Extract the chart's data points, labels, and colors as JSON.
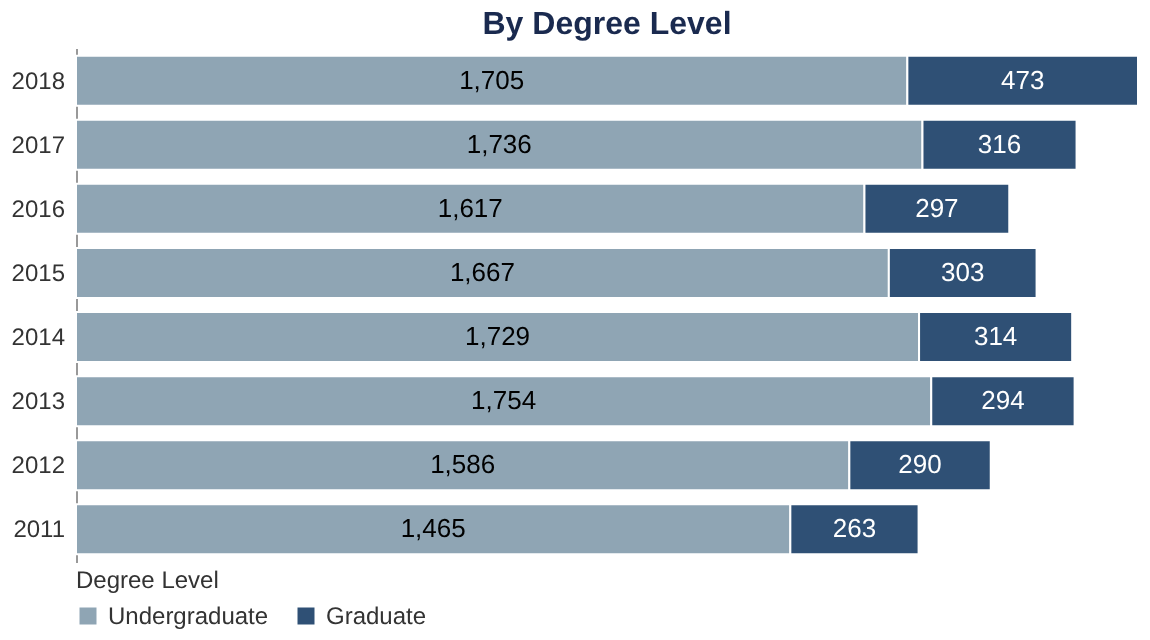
{
  "chart_data": {
    "type": "bar",
    "title": "By Degree Level",
    "orientation": "horizontal",
    "stacked": true,
    "categories": [
      "2018",
      "2017",
      "2016",
      "2015",
      "2014",
      "2013",
      "2012",
      "2011"
    ],
    "series": [
      {
        "name": "Undergraduate",
        "color": "#8fa5b4",
        "values": [
          1705,
          1736,
          1617,
          1667,
          1729,
          1754,
          1586,
          1465
        ],
        "value_labels": [
          "1,705",
          "1,736",
          "1,617",
          "1,667",
          "1,729",
          "1,754",
          "1,586",
          "1,465"
        ]
      },
      {
        "name": "Graduate",
        "color": "#2f5075",
        "values": [
          473,
          316,
          297,
          303,
          314,
          294,
          290,
          263
        ],
        "data_labels": true
      }
    ],
    "tick_labels": "y",
    "legend": "bottom left",
    "legend_title": "Degree Level"
  }
}
